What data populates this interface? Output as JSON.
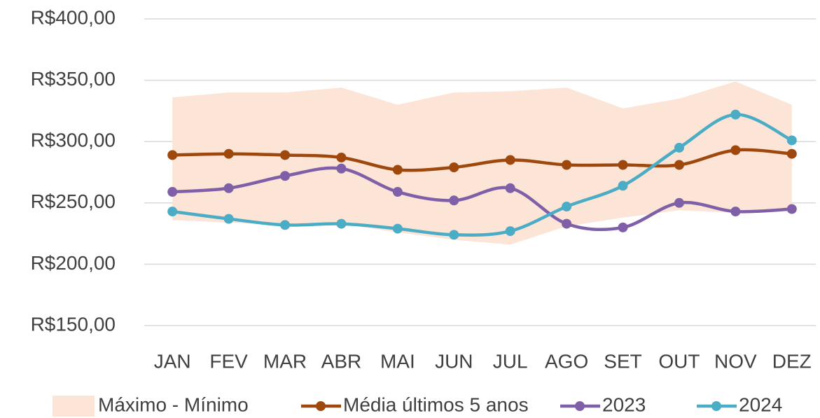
{
  "chart_data": {
    "type": "line",
    "categories": [
      "JAN",
      "FEV",
      "MAR",
      "ABR",
      "MAI",
      "JUN",
      "JUL",
      "AGO",
      "SET",
      "OUT",
      "NOV",
      "DEZ"
    ],
    "ylim": [
      150,
      400
    ],
    "yticks": [
      {
        "value": 150,
        "label": "R$150,00"
      },
      {
        "value": 200,
        "label": "R$200,00"
      },
      {
        "value": 250,
        "label": "R$250,00"
      },
      {
        "value": 300,
        "label": "R$300,00"
      },
      {
        "value": 350,
        "label": "R$350,00"
      },
      {
        "value": 400,
        "label": "R$400,00"
      }
    ],
    "grid": true,
    "legend": "bottom",
    "series": [
      {
        "name": "Máximo - Mínimo",
        "type": "band",
        "color": "#fce4d6",
        "high": [
          336,
          340,
          340,
          344,
          330,
          340,
          341,
          344,
          327,
          335,
          349,
          330
        ],
        "low": [
          236,
          234,
          232,
          233,
          226,
          220,
          216,
          231,
          238,
          244,
          242,
          243
        ]
      },
      {
        "name": "Média últimos 5 anos",
        "color": "#9e480e",
        "values": [
          289,
          290,
          289,
          287,
          277,
          279,
          285,
          281,
          281,
          281,
          293,
          290
        ]
      },
      {
        "name": "2023",
        "color": "#7f60a8",
        "values": [
          259,
          262,
          272,
          278,
          259,
          252,
          262,
          233,
          230,
          250,
          243,
          245
        ]
      },
      {
        "name": "2024",
        "color": "#4bacc6",
        "values": [
          243,
          237,
          232,
          233,
          229,
          224,
          227,
          247,
          264,
          295,
          322,
          301
        ]
      }
    ]
  }
}
